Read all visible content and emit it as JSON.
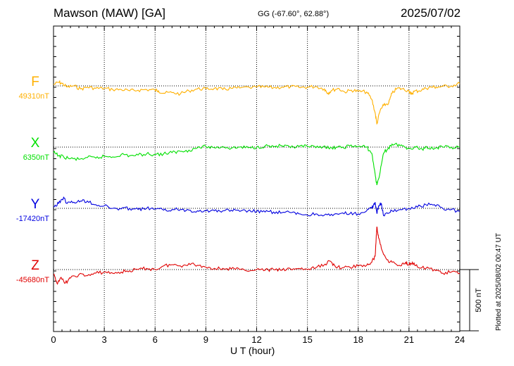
{
  "header": {
    "station": "Mawson (MAW)  [GA]",
    "coords": "GG (-67.60°,  62.88°)",
    "date": "2025/07/02"
  },
  "footer": {
    "plotted": "Plotted at 2025/08/02 00:47 UT"
  },
  "chart_data": {
    "type": "line",
    "title": "Mawson (MAW)  [GA]",
    "xlabel": "U T (hour)",
    "ylabel": "",
    "xlim": [
      0,
      24
    ],
    "xticks": [
      "0",
      "3",
      "6",
      "9",
      "12",
      "15",
      "18",
      "21",
      "24"
    ],
    "grid": true,
    "scale_bar": {
      "label": "500 nT",
      "value_nT": 500
    },
    "colors": {
      "F": "#ffb000",
      "X": "#00e000",
      "Y": "#0000e0",
      "Z": "#e00000"
    },
    "series": [
      {
        "name": "F",
        "baseline_label": "49310nT",
        "baseline_nT": 49310,
        "points": [
          [
            0,
            49320
          ],
          [
            0.3,
            49340
          ],
          [
            0.5,
            49330
          ],
          [
            0.8,
            49300
          ],
          [
            1.2,
            49310
          ],
          [
            1.6,
            49285
          ],
          [
            2,
            49300
          ],
          [
            2.5,
            49290
          ],
          [
            3,
            49290
          ],
          [
            3.5,
            49280
          ],
          [
            4,
            49280
          ],
          [
            4.5,
            49270
          ],
          [
            5,
            49275
          ],
          [
            5.5,
            49280
          ],
          [
            6,
            49275
          ],
          [
            6.2,
            49270
          ],
          [
            6.5,
            49250
          ],
          [
            7,
            49255
          ],
          [
            7.5,
            49245
          ],
          [
            8,
            49270
          ],
          [
            8.5,
            49285
          ],
          [
            9,
            49285
          ],
          [
            9.5,
            49290
          ],
          [
            10,
            49280
          ],
          [
            10.5,
            49290
          ],
          [
            11,
            49293
          ],
          [
            12,
            49300
          ],
          [
            12.5,
            49300
          ],
          [
            13,
            49295
          ],
          [
            13.5,
            49300
          ],
          [
            14,
            49303
          ],
          [
            14.5,
            49297
          ],
          [
            15,
            49300
          ],
          [
            15.5,
            49305
          ],
          [
            16,
            49285
          ],
          [
            16.2,
            49250
          ],
          [
            16.4,
            49270
          ],
          [
            16.8,
            49290
          ],
          [
            17.2,
            49260
          ],
          [
            17.6,
            49275
          ],
          [
            18,
            49265
          ],
          [
            18.5,
            49260
          ],
          [
            18.8,
            49200
          ],
          [
            19,
            49090
          ],
          [
            19.1,
            49000
          ],
          [
            19.3,
            49110
          ],
          [
            19.5,
            49150
          ],
          [
            19.8,
            49170
          ],
          [
            20,
            49250
          ],
          [
            20.3,
            49290
          ],
          [
            20.6,
            49285
          ],
          [
            21,
            49270
          ],
          [
            21.1,
            49240
          ],
          [
            21.3,
            49265
          ],
          [
            21.6,
            49270
          ],
          [
            22,
            49290
          ],
          [
            22.3,
            49300
          ],
          [
            22.6,
            49300
          ],
          [
            23,
            49305
          ],
          [
            23.5,
            49310
          ],
          [
            24,
            49330
          ]
        ]
      },
      {
        "name": "X",
        "baseline_label": "6350nT",
        "baseline_nT": 6350,
        "points": [
          [
            0,
            6305
          ],
          [
            0.3,
            6280
          ],
          [
            0.6,
            6270
          ],
          [
            1,
            6255
          ],
          [
            1.5,
            6250
          ],
          [
            2,
            6265
          ],
          [
            2.5,
            6260
          ],
          [
            3,
            6275
          ],
          [
            3.5,
            6270
          ],
          [
            4,
            6290
          ],
          [
            4.5,
            6280
          ],
          [
            5,
            6285
          ],
          [
            5.5,
            6295
          ],
          [
            6,
            6290
          ],
          [
            6.5,
            6295
          ],
          [
            7,
            6305
          ],
          [
            7.5,
            6315
          ],
          [
            8,
            6325
          ],
          [
            8.5,
            6345
          ],
          [
            9,
            6355
          ],
          [
            9.5,
            6345
          ],
          [
            10,
            6355
          ],
          [
            10.5,
            6340
          ],
          [
            11,
            6350
          ],
          [
            11.5,
            6345
          ],
          [
            12,
            6350
          ],
          [
            12.5,
            6360
          ],
          [
            13,
            6355
          ],
          [
            13.5,
            6360
          ],
          [
            14,
            6345
          ],
          [
            14.5,
            6355
          ],
          [
            15,
            6355
          ],
          [
            15.5,
            6345
          ],
          [
            16,
            6360
          ],
          [
            16.3,
            6335
          ],
          [
            16.7,
            6350
          ],
          [
            17,
            6345
          ],
          [
            17.5,
            6360
          ],
          [
            18,
            6355
          ],
          [
            18.5,
            6350
          ],
          [
            18.8,
            6300
          ],
          [
            19,
            6130
          ],
          [
            19.1,
            6040
          ],
          [
            19.3,
            6150
          ],
          [
            19.5,
            6300
          ],
          [
            19.8,
            6345
          ],
          [
            20,
            6375
          ],
          [
            20.3,
            6370
          ],
          [
            20.6,
            6360
          ],
          [
            21,
            6340
          ],
          [
            21.4,
            6350
          ],
          [
            21.8,
            6330
          ],
          [
            22,
            6355
          ],
          [
            22.3,
            6340
          ],
          [
            22.6,
            6345
          ],
          [
            23,
            6350
          ],
          [
            23.5,
            6350
          ],
          [
            24,
            6350
          ]
        ]
      },
      {
        "name": "Y",
        "baseline_label": "-17420nT",
        "baseline_nT": -17420,
        "points": [
          [
            0,
            -17410
          ],
          [
            0.3,
            -17380
          ],
          [
            0.6,
            -17330
          ],
          [
            0.8,
            -17380
          ],
          [
            1.2,
            -17370
          ],
          [
            1.6,
            -17360
          ],
          [
            2,
            -17360
          ],
          [
            2.5,
            -17390
          ],
          [
            3,
            -17400
          ],
          [
            3.5,
            -17420
          ],
          [
            4,
            -17425
          ],
          [
            4.5,
            -17420
          ],
          [
            5,
            -17430
          ],
          [
            5.5,
            -17420
          ],
          [
            6,
            -17425
          ],
          [
            6.5,
            -17435
          ],
          [
            7,
            -17430
          ],
          [
            7.5,
            -17430
          ],
          [
            8,
            -17435
          ],
          [
            8.5,
            -17440
          ],
          [
            9,
            -17440
          ],
          [
            9.5,
            -17440
          ],
          [
            10,
            -17440
          ],
          [
            10.5,
            -17435
          ],
          [
            11,
            -17445
          ],
          [
            11.5,
            -17440
          ],
          [
            12,
            -17445
          ],
          [
            12.5,
            -17450
          ],
          [
            13,
            -17450
          ],
          [
            13.5,
            -17455
          ],
          [
            14,
            -17455
          ],
          [
            14.5,
            -17465
          ],
          [
            15,
            -17475
          ],
          [
            15.5,
            -17465
          ],
          [
            16,
            -17475
          ],
          [
            16.5,
            -17480
          ],
          [
            17,
            -17460
          ],
          [
            17.5,
            -17465
          ],
          [
            18,
            -17465
          ],
          [
            18.5,
            -17440
          ],
          [
            18.8,
            -17420
          ],
          [
            19,
            -17370
          ],
          [
            19.1,
            -17460
          ],
          [
            19.2,
            -17400
          ],
          [
            19.35,
            -17380
          ],
          [
            19.5,
            -17480
          ],
          [
            19.8,
            -17460
          ],
          [
            20,
            -17440
          ],
          [
            20.5,
            -17430
          ],
          [
            21,
            -17420
          ],
          [
            21.5,
            -17410
          ],
          [
            22,
            -17390
          ],
          [
            22.5,
            -17390
          ],
          [
            23,
            -17420
          ],
          [
            23.5,
            -17430
          ],
          [
            24,
            -17445
          ]
        ]
      },
      {
        "name": "Z",
        "baseline_label": "-45680nT",
        "baseline_nT": -45680,
        "points": [
          [
            0,
            -45720
          ],
          [
            0.2,
            -45790
          ],
          [
            0.4,
            -45750
          ],
          [
            0.7,
            -45790
          ],
          [
            1,
            -45750
          ],
          [
            1.5,
            -45720
          ],
          [
            2,
            -45730
          ],
          [
            2.5,
            -45710
          ],
          [
            3,
            -45700
          ],
          [
            3.5,
            -45710
          ],
          [
            4,
            -45700
          ],
          [
            4.5,
            -45690
          ],
          [
            5,
            -45680
          ],
          [
            5.5,
            -45670
          ],
          [
            6,
            -45680
          ],
          [
            6.5,
            -45650
          ],
          [
            7,
            -45640
          ],
          [
            7.5,
            -45650
          ],
          [
            8,
            -45630
          ],
          [
            8.5,
            -45645
          ],
          [
            9,
            -45660
          ],
          [
            9.5,
            -45670
          ],
          [
            10,
            -45670
          ],
          [
            10.5,
            -45675
          ],
          [
            11,
            -45680
          ],
          [
            12,
            -45680
          ],
          [
            12.5,
            -45685
          ],
          [
            13,
            -45680
          ],
          [
            13.5,
            -45685
          ],
          [
            14,
            -45675
          ],
          [
            14.5,
            -45670
          ],
          [
            15,
            -45680
          ],
          [
            15.5,
            -45665
          ],
          [
            16,
            -45640
          ],
          [
            16.3,
            -45610
          ],
          [
            16.6,
            -45645
          ],
          [
            17,
            -45670
          ],
          [
            17.5,
            -45660
          ],
          [
            18,
            -45650
          ],
          [
            18.5,
            -45645
          ],
          [
            18.8,
            -45620
          ],
          [
            19,
            -45570
          ],
          [
            19.1,
            -45330
          ],
          [
            19.2,
            -45420
          ],
          [
            19.4,
            -45520
          ],
          [
            19.7,
            -45600
          ],
          [
            20,
            -45620
          ],
          [
            20.5,
            -45650
          ],
          [
            20.8,
            -45620
          ],
          [
            21,
            -45640
          ],
          [
            21.2,
            -45620
          ],
          [
            21.5,
            -45660
          ],
          [
            22,
            -45670
          ],
          [
            22.5,
            -45680
          ],
          [
            23,
            -45710
          ],
          [
            23.5,
            -45700
          ],
          [
            24,
            -45710
          ]
        ]
      }
    ]
  }
}
